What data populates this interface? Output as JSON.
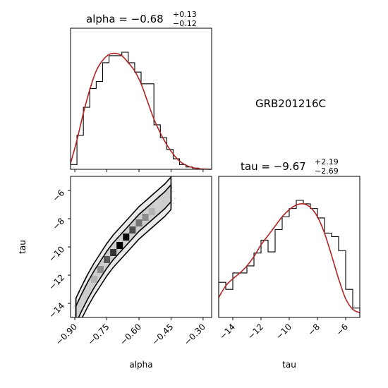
{
  "chart_data": {
    "type": "corner",
    "label": "GRB201216C",
    "params": [
      {
        "name": "alpha",
        "title_main": "alpha = −0.68",
        "title_sup": "+0.13",
        "title_sub": "−0.12",
        "xlim": [
          -0.92,
          -0.26
        ],
        "ticks": [
          -0.9,
          -0.75,
          -0.6,
          -0.45,
          -0.3
        ],
        "tick_labels": [
          "−0.90",
          "−0.75",
          "−0.60",
          "−0.45",
          "−0.30"
        ]
      },
      {
        "name": "tau",
        "title_main": "tau = −9.67",
        "title_sup": "+2.19",
        "title_sub": "−2.69",
        "xlim": [
          -15.0,
          -5.0
        ],
        "ticks": [
          -14,
          -12,
          -10,
          -8,
          -6
        ],
        "tick_labels": [
          "−14",
          "−12",
          "−10",
          "−8",
          "−6"
        ]
      }
    ],
    "hist_alpha": {
      "edges": [
        -0.92,
        -0.89,
        -0.86,
        -0.83,
        -0.8,
        -0.77,
        -0.74,
        -0.71,
        -0.68,
        -0.65,
        -0.62,
        -0.59,
        -0.56,
        -0.53,
        -0.5,
        -0.47,
        -0.44,
        -0.41,
        -0.38,
        -0.35,
        -0.32,
        -0.29,
        -0.26
      ],
      "counts": [
        0.04,
        0.29,
        0.53,
        0.69,
        0.75,
        0.91,
        0.97,
        0.97,
        1.0,
        0.91,
        0.83,
        0.73,
        0.73,
        0.38,
        0.27,
        0.17,
        0.09,
        0.04,
        0.02,
        0.01,
        0.0,
        0.0
      ],
      "kde_x": [
        -0.92,
        -0.89,
        -0.86,
        -0.83,
        -0.8,
        -0.77,
        -0.74,
        -0.71,
        -0.68,
        -0.65,
        -0.62,
        -0.59,
        -0.56,
        -0.53,
        -0.5,
        -0.47,
        -0.44,
        -0.41,
        -0.38,
        -0.35,
        -0.32,
        -0.29,
        -0.26
      ],
      "kde_y": [
        0.05,
        0.25,
        0.48,
        0.68,
        0.84,
        0.93,
        0.98,
        0.99,
        0.97,
        0.91,
        0.84,
        0.73,
        0.58,
        0.43,
        0.31,
        0.21,
        0.13,
        0.07,
        0.035,
        0.015,
        0.005,
        0.002,
        0.0
      ]
    },
    "hist_tau": {
      "edges": [
        -15.0,
        -14.5,
        -14.0,
        -13.5,
        -13.0,
        -12.5,
        -12.0,
        -11.5,
        -11.0,
        -10.5,
        -10.0,
        -9.5,
        -9.0,
        -8.5,
        -8.0,
        -7.5,
        -7.0,
        -6.5,
        -6.0,
        -5.5,
        -5.0
      ],
      "counts": [
        0.3,
        0.24,
        0.38,
        0.38,
        0.44,
        0.55,
        0.66,
        0.56,
        0.75,
        0.86,
        0.93,
        1.0,
        0.97,
        0.93,
        0.85,
        0.72,
        0.69,
        0.57,
        0.24,
        0.08
      ],
      "kde_x": [
        -15.0,
        -14.5,
        -14.0,
        -13.5,
        -13.0,
        -12.5,
        -12.0,
        -11.5,
        -11.0,
        -10.5,
        -10.0,
        -9.5,
        -9.0,
        -8.5,
        -8.0,
        -7.5,
        -7.0,
        -6.5,
        -6.0,
        -5.5,
        -5.0
      ],
      "kde_y": [
        0.17,
        0.27,
        0.33,
        0.38,
        0.44,
        0.52,
        0.62,
        0.7,
        0.78,
        0.86,
        0.92,
        0.96,
        0.97,
        0.94,
        0.86,
        0.72,
        0.53,
        0.33,
        0.16,
        0.07,
        0.04
      ]
    },
    "joint": {
      "ridge_alpha": [
        -0.895,
        -0.87,
        -0.84,
        -0.81,
        -0.78,
        -0.75,
        -0.72,
        -0.69,
        -0.66,
        -0.63,
        -0.6,
        -0.57,
        -0.54,
        -0.51,
        -0.48,
        -0.45
      ],
      "ridge_tau": [
        -14.8,
        -14.0,
        -13.1,
        -12.3,
        -11.6,
        -10.9,
        -10.3,
        -9.8,
        -9.3,
        -8.8,
        -8.3,
        -7.9,
        -7.5,
        -7.1,
        -6.7,
        -6.2
      ],
      "inner_halfwidth_tau": 0.6,
      "outer_halfwidth_tau": 1.15,
      "dense_cells": [
        {
          "alpha": -0.69,
          "tau": -9.9,
          "level": 1.0
        },
        {
          "alpha": -0.66,
          "tau": -9.3,
          "level": 0.95
        },
        {
          "alpha": -0.72,
          "tau": -10.4,
          "level": 0.8
        },
        {
          "alpha": -0.63,
          "tau": -8.8,
          "level": 0.7
        },
        {
          "alpha": -0.75,
          "tau": -10.9,
          "level": 0.65
        },
        {
          "alpha": -0.6,
          "tau": -8.3,
          "level": 0.55
        },
        {
          "alpha": -0.78,
          "tau": -11.6,
          "level": 0.45
        },
        {
          "alpha": -0.57,
          "tau": -7.9,
          "level": 0.45
        },
        {
          "alpha": -0.81,
          "tau": -12.3,
          "level": 0.3
        },
        {
          "alpha": -0.54,
          "tau": -7.5,
          "level": 0.3
        },
        {
          "alpha": -0.84,
          "tau": -13.0,
          "level": 0.2
        },
        {
          "alpha": -0.51,
          "tau": -7.0,
          "level": 0.18
        }
      ],
      "ylim": [
        -15.0,
        -5.0
      ],
      "yticks": [
        -6,
        -8,
        -10,
        -12,
        -14
      ],
      "ytick_labels": [
        "−6",
        "−8",
        "−10",
        "−12",
        "−14"
      ]
    },
    "colors": {
      "kde": "#b22222",
      "hist": "#000000",
      "contour": "#000000"
    }
  }
}
